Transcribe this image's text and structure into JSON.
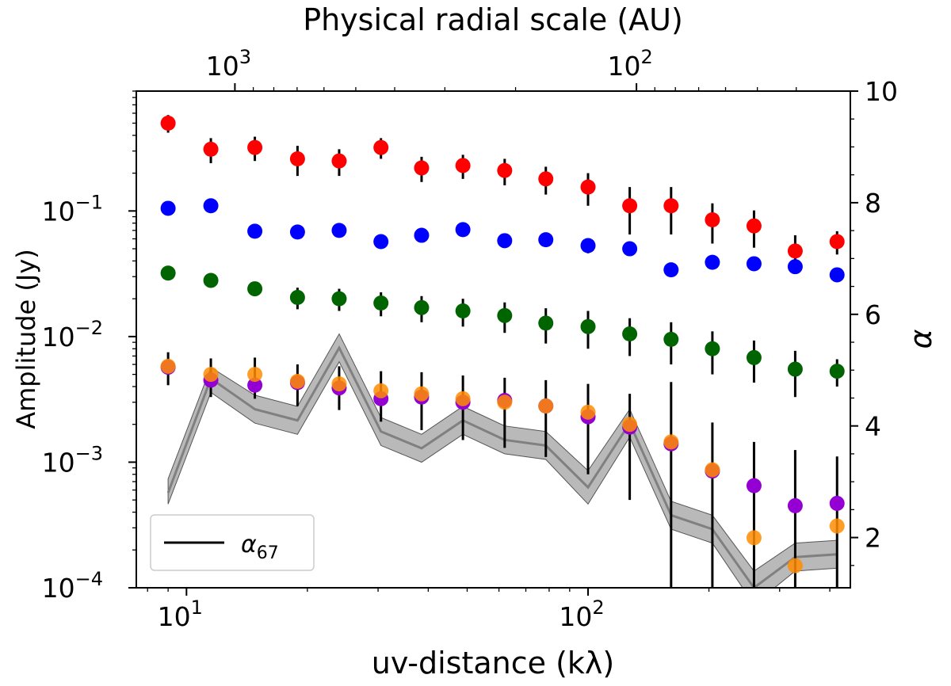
{
  "chart_data": {
    "type": "scatter",
    "title": "Physical radial scale (AU)",
    "xlabel": "uv-distance (kλ)",
    "ylabel": "Amplitude (Jy)",
    "y2label": "α",
    "x_scale": "log",
    "y_scale": "log",
    "xlim": [
      7.5,
      450
    ],
    "ylim": [
      0.0001,
      0.9
    ],
    "y2lim": [
      1.1,
      10
    ],
    "top_axis": {
      "label": "Physical radial scale (AU)",
      "scale": "log",
      "ticks": [
        1000,
        100
      ]
    },
    "legend": {
      "position": "lower-left",
      "entries": [
        {
          "label": "α",
          "sub": "67",
          "color": "#000000"
        }
      ]
    },
    "x": [
      9.0,
      11.5,
      14.8,
      18.9,
      24.0,
      30.5,
      38.5,
      48.8,
      62.0,
      78.5,
      100,
      127,
      161,
      204,
      259,
      328,
      417
    ],
    "series": [
      {
        "color": "#ff0000",
        "values": [
          0.5,
          0.31,
          0.32,
          0.26,
          0.25,
          0.32,
          0.22,
          0.23,
          0.21,
          0.18,
          0.155,
          0.11,
          0.11,
          0.085,
          0.076,
          0.048,
          0.057
        ],
        "err": [
          0.08,
          0.07,
          0.07,
          0.07,
          0.06,
          0.06,
          0.05,
          0.05,
          0.05,
          0.045,
          0.045,
          0.045,
          0.045,
          0.03,
          0.025,
          0.016,
          0.012
        ]
      },
      {
        "color": "#0000ff",
        "values": [
          0.105,
          0.11,
          0.069,
          0.068,
          0.07,
          0.057,
          0.064,
          0.071,
          0.058,
          0.059,
          0.053,
          0.05,
          0.034,
          0.039,
          0.038,
          0.036,
          0.031
        ],
        "err": [
          0,
          0,
          0,
          0,
          0,
          0.007,
          0.006,
          0.006,
          0.007,
          0.006,
          0.007,
          0,
          0.004,
          0.003,
          0.003,
          0,
          0
        ]
      },
      {
        "color": "#006400",
        "values": [
          0.032,
          0.028,
          0.024,
          0.0205,
          0.02,
          0.0185,
          0.017,
          0.016,
          0.0147,
          0.0128,
          0.012,
          0.0105,
          0.0095,
          0.008,
          0.0068,
          0.0055,
          0.0053
        ],
        "err": [
          0,
          0,
          0.003,
          0.004,
          0.004,
          0.004,
          0.004,
          0.004,
          0.004,
          0.004,
          0.004,
          0.0035,
          0.0035,
          0.003,
          0.0025,
          0.0022,
          0.0013
        ]
      },
      {
        "color": "#9400d3",
        "values": [
          0.0057,
          0.0045,
          0.0041,
          0.0043,
          0.0039,
          0.0032,
          0.0033,
          0.003,
          0.0031,
          0.0028,
          0.0023,
          0.0019,
          0.0014,
          0.00085,
          0.00065,
          0.00045,
          0.00047
        ],
        "err": [
          0,
          0,
          0,
          0,
          0,
          0,
          0,
          0,
          0,
          0,
          0,
          0,
          0,
          0,
          0,
          0,
          0
        ]
      },
      {
        "color": "#ff8c00",
        "values": [
          0.0058,
          0.005,
          0.005,
          0.0044,
          0.0042,
          0.0037,
          0.0035,
          0.0032,
          0.003,
          0.0028,
          0.0025,
          0.002,
          0.00145,
          0.00087,
          0.00025,
          0.00015,
          0.00031
        ],
        "err": [
          0.0017,
          0.0017,
          0.0018,
          0.0016,
          0.0016,
          0.0016,
          0.0017,
          0.0017,
          0.0017,
          0.0017,
          0.0017,
          0.0015,
          0.0029,
          0.0012,
          0.0012,
          0.0011,
          0.0008
        ]
      }
    ],
    "alpha_line": {
      "name": "α67",
      "color": "#808080",
      "x": [
        9.0,
        11.5,
        14.8,
        18.9,
        24.0,
        30.5,
        38.5,
        48.8,
        62.0,
        78.5,
        100,
        127,
        161,
        204,
        259,
        328,
        417
      ],
      "values": [
        2.8,
        4.85,
        4.3,
        4.1,
        5.4,
        3.9,
        3.6,
        4.1,
        3.75,
        3.65,
        2.9,
        4.05,
        2.4,
        2.15,
        1.1,
        1.65,
        1.7
      ],
      "lower": [
        2.6,
        4.6,
        4.05,
        3.85,
        5.15,
        3.65,
        3.35,
        3.85,
        3.5,
        3.4,
        2.6,
        3.8,
        2.15,
        1.9,
        0.8,
        1.4,
        1.45
      ],
      "upper": [
        3.05,
        5.05,
        4.55,
        4.35,
        5.65,
        4.15,
        3.85,
        4.35,
        4.0,
        3.9,
        3.2,
        4.3,
        2.65,
        2.4,
        1.4,
        1.9,
        1.95
      ]
    }
  }
}
